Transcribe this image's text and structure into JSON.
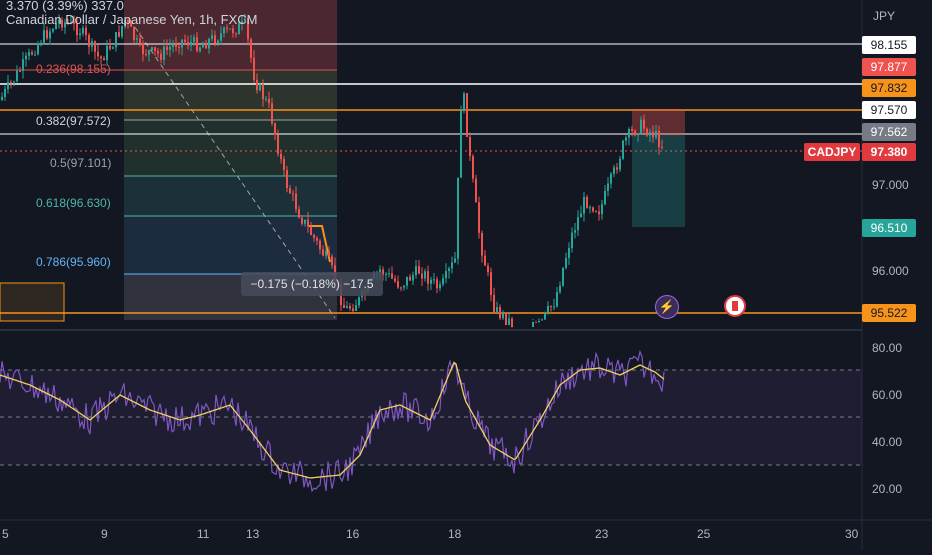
{
  "header": {
    "ohlc_text": "3.370 (3.39%) 337.0",
    "title": "Canadian Dollar / Japanese Yen, 1h, FXCM"
  },
  "price_axis": {
    "currency": "JPY",
    "ticks": [
      "97.000",
      "96.000"
    ],
    "tags": [
      {
        "label": "98.155",
        "kind": "white-line"
      },
      {
        "label": "97.877",
        "kind": "red"
      },
      {
        "label": "97.832",
        "kind": "orange"
      },
      {
        "label": "97.570",
        "kind": "white-line"
      },
      {
        "label": "97.562",
        "kind": "gray"
      },
      {
        "label": "97.380",
        "kind": "red-last"
      },
      {
        "label": "96.510",
        "kind": "teal"
      },
      {
        "label": "95.522",
        "kind": "orange"
      }
    ],
    "symbol_tag": "CADJPY"
  },
  "rsi_axis": {
    "ticks": [
      "80.00",
      "60.00",
      "40.00",
      "20.00"
    ]
  },
  "time_axis": {
    "ticks": [
      "5",
      "9",
      "11",
      "13",
      "16",
      "18",
      "23",
      "25",
      "30"
    ]
  },
  "fib_levels": [
    {
      "label": "0.236(98.155)",
      "color": "#e05252"
    },
    {
      "label": "0.382(97.572)",
      "color": "#d1d4dc"
    },
    {
      "label": "0.5(97.101)",
      "color": "#9aa3a3"
    },
    {
      "label": "0.618(96.630)",
      "color": "#4db6ac"
    },
    {
      "label": "0.786(95.960)",
      "color": "#64b5f6"
    }
  ],
  "measure_label": "−0.175 (−0.18%) −17.5",
  "event_icons": {
    "lightning": "lightning-icon",
    "flag": "canada-flag-icon"
  },
  "colors": {
    "background": "#131722",
    "up": "#26a69a",
    "down": "#ef5350",
    "rsi": "#7e57c2",
    "rsi_ma": "#f0d060",
    "orange": "#f7931a"
  }
}
